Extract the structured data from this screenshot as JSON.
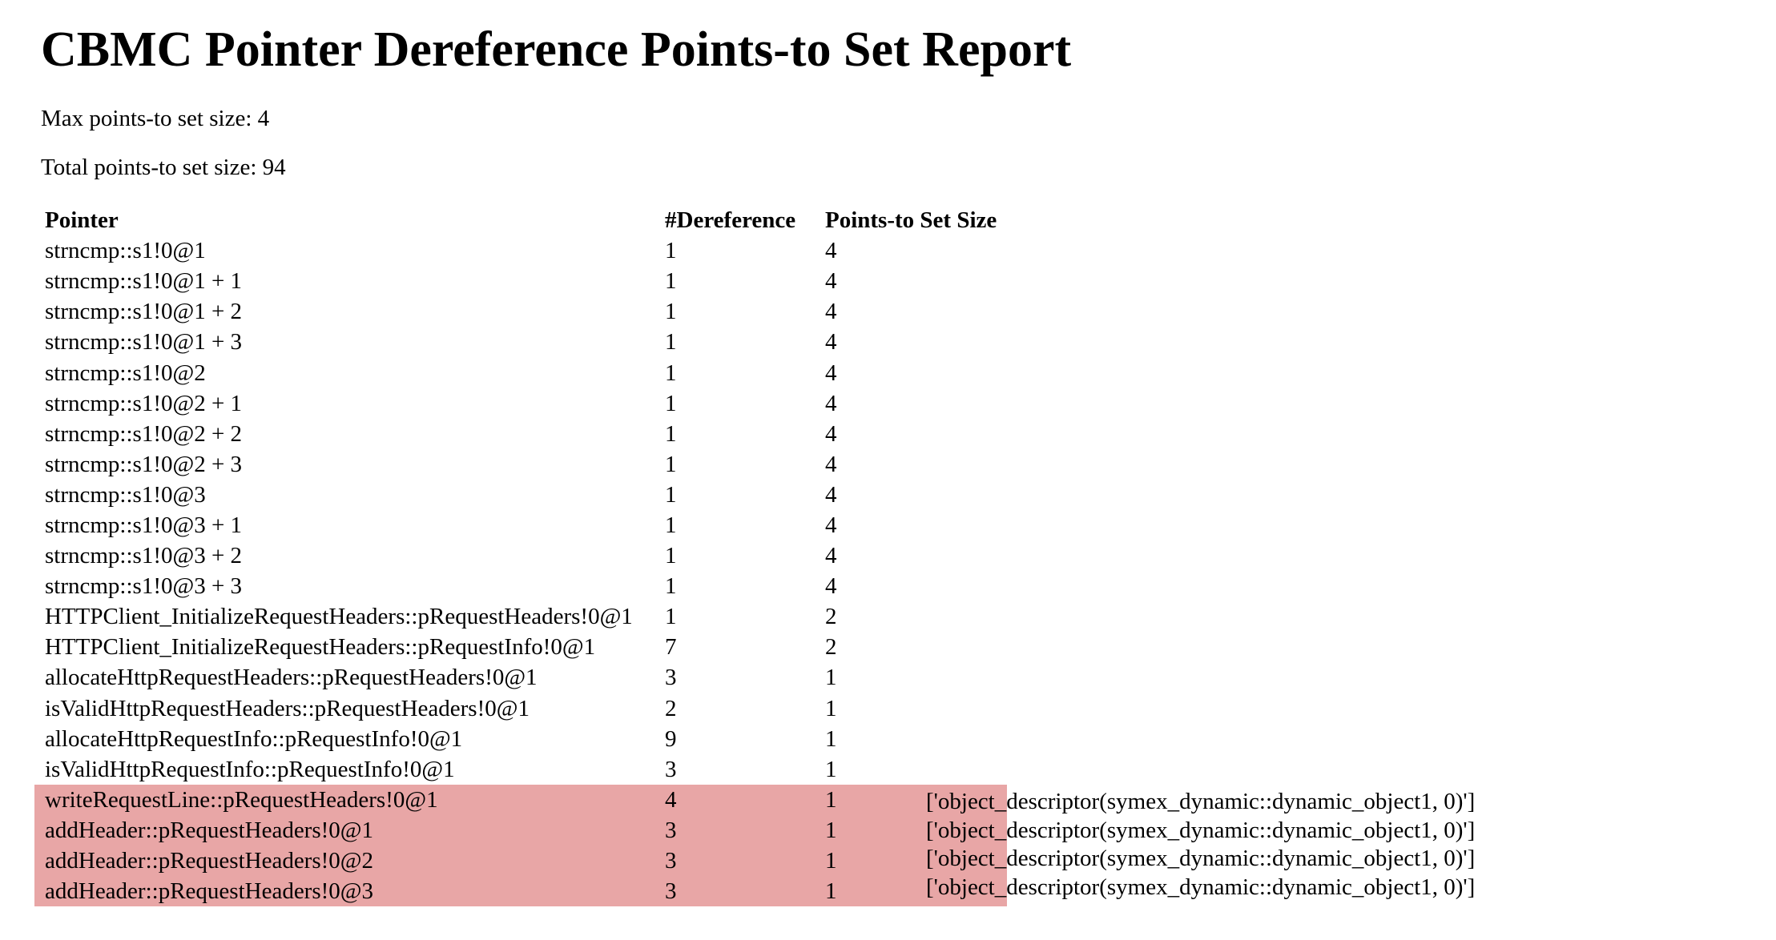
{
  "title": "CBMC Pointer Dereference Points-to Set Report",
  "stats": {
    "max": "Max points-to set size: 4",
    "total": "Total points-to set size: 94"
  },
  "table": {
    "headers": [
      "Pointer",
      "#Dereference",
      "Points-to Set Size"
    ],
    "rows": [
      {
        "pointer": "strncmp::s1!0@1",
        "deref": "1",
        "size": "4",
        "highlight": false
      },
      {
        "pointer": "strncmp::s1!0@1 + 1",
        "deref": "1",
        "size": "4",
        "highlight": false
      },
      {
        "pointer": "strncmp::s1!0@1 + 2",
        "deref": "1",
        "size": "4",
        "highlight": false
      },
      {
        "pointer": "strncmp::s1!0@1 + 3",
        "deref": "1",
        "size": "4",
        "highlight": false
      },
      {
        "pointer": "strncmp::s1!0@2",
        "deref": "1",
        "size": "4",
        "highlight": false
      },
      {
        "pointer": "strncmp::s1!0@2 + 1",
        "deref": "1",
        "size": "4",
        "highlight": false
      },
      {
        "pointer": "strncmp::s1!0@2 + 2",
        "deref": "1",
        "size": "4",
        "highlight": false
      },
      {
        "pointer": "strncmp::s1!0@2 + 3",
        "deref": "1",
        "size": "4",
        "highlight": false
      },
      {
        "pointer": "strncmp::s1!0@3",
        "deref": "1",
        "size": "4",
        "highlight": false
      },
      {
        "pointer": "strncmp::s1!0@3 + 1",
        "deref": "1",
        "size": "4",
        "highlight": false
      },
      {
        "pointer": "strncmp::s1!0@3 + 2",
        "deref": "1",
        "size": "4",
        "highlight": false
      },
      {
        "pointer": "strncmp::s1!0@3 + 3",
        "deref": "1",
        "size": "4",
        "highlight": false
      },
      {
        "pointer": "HTTPClient_InitializeRequestHeaders::pRequestHeaders!0@1",
        "deref": "1",
        "size": "2",
        "highlight": false
      },
      {
        "pointer": "HTTPClient_InitializeRequestHeaders::pRequestInfo!0@1",
        "deref": "7",
        "size": "2",
        "highlight": false
      },
      {
        "pointer": "allocateHttpRequestHeaders::pRequestHeaders!0@1",
        "deref": "3",
        "size": "1",
        "highlight": false
      },
      {
        "pointer": "isValidHttpRequestHeaders::pRequestHeaders!0@1",
        "deref": "2",
        "size": "1",
        "highlight": false
      },
      {
        "pointer": "allocateHttpRequestInfo::pRequestInfo!0@1",
        "deref": "9",
        "size": "1",
        "highlight": false
      },
      {
        "pointer": "isValidHttpRequestInfo::pRequestInfo!0@1",
        "deref": "3",
        "size": "1",
        "highlight": false
      },
      {
        "pointer": "writeRequestLine::pRequestHeaders!0@1",
        "deref": "4",
        "size": "1",
        "highlight": true
      },
      {
        "pointer": "addHeader::pRequestHeaders!0@1",
        "deref": "3",
        "size": "1",
        "highlight": true
      },
      {
        "pointer": "addHeader::pRequestHeaders!0@2",
        "deref": "3",
        "size": "1",
        "highlight": true
      },
      {
        "pointer": "addHeader::pRequestHeaders!0@3",
        "deref": "3",
        "size": "1",
        "highlight": true
      }
    ]
  },
  "targets": [
    "['object_descriptor(symex_dynamic::dynamic_object1, 0)']",
    "['object_descriptor(symex_dynamic::dynamic_object1, 0)']",
    "['object_descriptor(symex_dynamic::dynamic_object1, 0)']",
    "['object_descriptor(symex_dynamic::dynamic_object1, 0)']"
  ],
  "colors": {
    "highlight": "#e8a6a6",
    "text": "#000000",
    "background": "#ffffff"
  }
}
